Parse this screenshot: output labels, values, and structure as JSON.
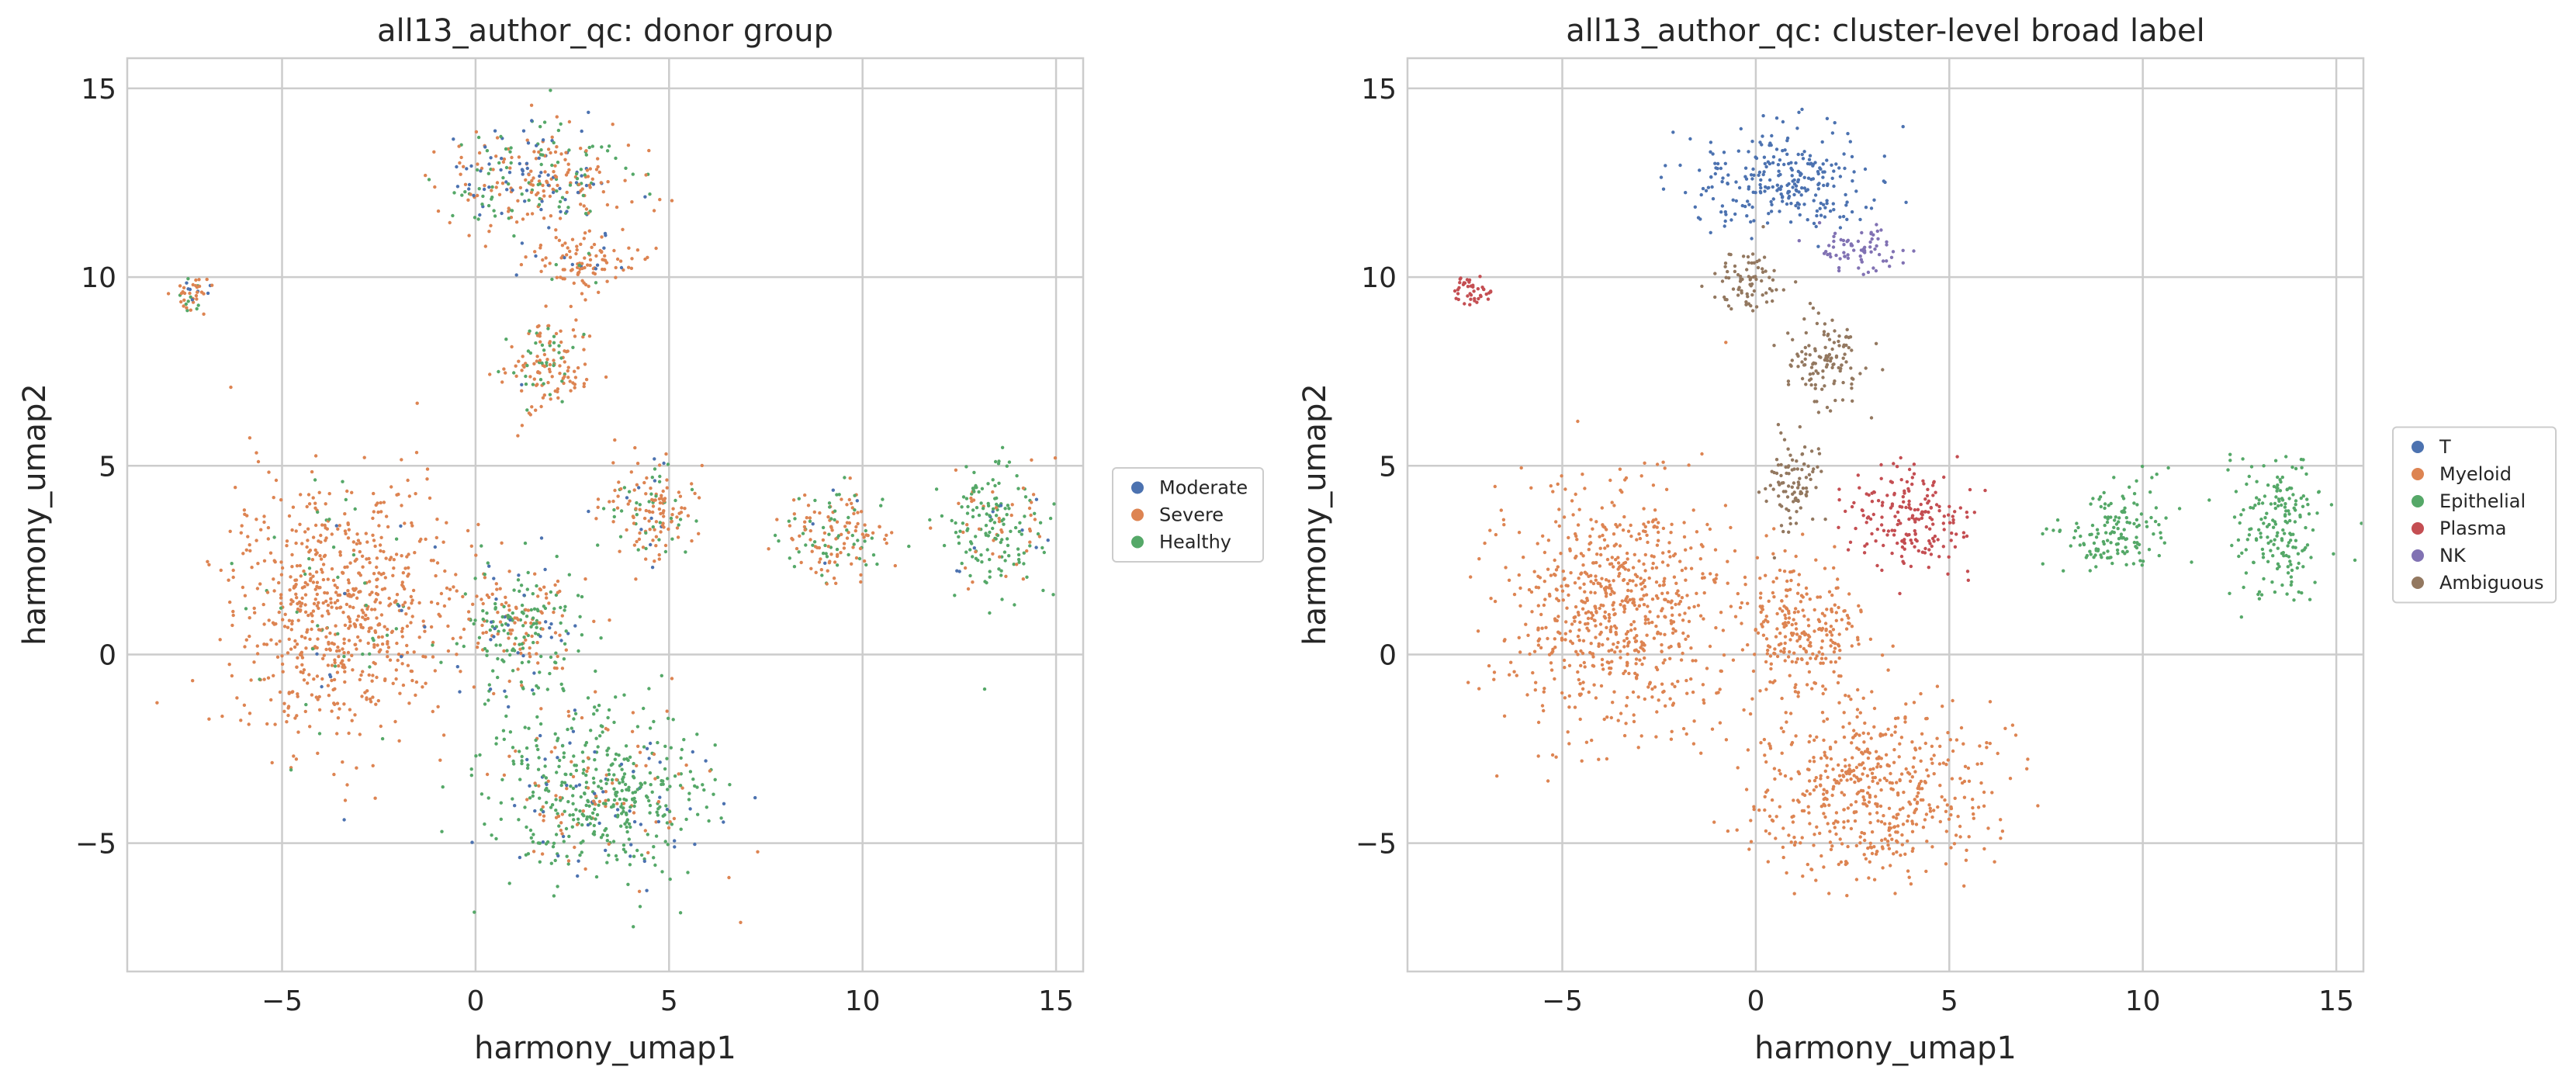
{
  "chart_data": [
    {
      "type": "scatter",
      "title": "all13_author_qc: donor group",
      "xlabel": "harmony_umap1",
      "ylabel": "harmony_umap2",
      "xlim": [
        -9,
        15.7
      ],
      "ylim": [
        -8.4,
        15.8
      ],
      "xticks": [
        -5,
        0,
        5,
        10,
        15
      ],
      "yticks": [
        -5,
        0,
        5,
        10,
        15
      ],
      "xtick_labels": [
        "−5",
        "0",
        "5",
        "10",
        "15"
      ],
      "ytick_labels": [
        "−5",
        "0",
        "5",
        "10",
        "15"
      ],
      "grid": true,
      "legend_position": "right-center, outside",
      "series": [
        {
          "name": "Moderate",
          "color": "#4c72b0"
        },
        {
          "name": "Severe",
          "color": "#dd8452"
        },
        {
          "name": "Healthy",
          "color": "#55a868"
        }
      ],
      "point_density": [
        {
          "region": "upper cluster",
          "cx": 1.5,
          "cy": 12.6,
          "sx": 1.6,
          "sy": 1.0,
          "counts": [
            0.22,
            0.45,
            0.33
          ]
        },
        {
          "region": "upper cluster tail",
          "cx": 2.7,
          "cy": 10.4,
          "sx": 0.9,
          "sy": 0.5,
          "counts": [
            0.05,
            0.9,
            0.05
          ]
        },
        {
          "region": "mid island",
          "cx": 1.8,
          "cy": 7.6,
          "sx": 0.8,
          "sy": 0.8,
          "counts": [
            0.05,
            0.75,
            0.2
          ]
        },
        {
          "region": "far-left streak",
          "cx": -7.3,
          "cy": 9.6,
          "sx": 0.35,
          "sy": 0.3,
          "counts": [
            0.1,
            0.6,
            0.3
          ]
        },
        {
          "region": "left myeloid mass",
          "cx": -3.5,
          "cy": 1.2,
          "sx": 1.9,
          "sy": 2.2,
          "counts": [
            0.02,
            0.93,
            0.05
          ]
        },
        {
          "region": "central lower mass",
          "cx": 3.2,
          "cy": -3.7,
          "sx": 1.9,
          "sy": 1.5,
          "counts": [
            0.1,
            0.15,
            0.75
          ]
        },
        {
          "region": "bridge",
          "cx": 1.2,
          "cy": 0.6,
          "sx": 1.1,
          "sy": 1.2,
          "counts": [
            0.08,
            0.35,
            0.57
          ]
        },
        {
          "region": "epithelial left",
          "cx": 9.3,
          "cy": 3.2,
          "sx": 0.9,
          "sy": 0.8,
          "counts": [
            0.05,
            0.55,
            0.4
          ]
        },
        {
          "region": "epithelial right",
          "cx": 13.5,
          "cy": 3.4,
          "sx": 0.8,
          "sy": 1.2,
          "counts": [
            0.05,
            0.2,
            0.75
          ]
        },
        {
          "region": "plasma arm",
          "cx": 4.5,
          "cy": 3.8,
          "sx": 0.9,
          "sy": 0.8,
          "counts": [
            0.05,
            0.7,
            0.25
          ]
        }
      ]
    },
    {
      "type": "scatter",
      "title": "all13_author_qc: cluster-level broad label",
      "xlabel": "harmony_umap1",
      "ylabel": "harmony_umap2",
      "xlim": [
        -9,
        15.7
      ],
      "ylim": [
        -8.4,
        15.8
      ],
      "xticks": [
        -5,
        0,
        5,
        10,
        15
      ],
      "yticks": [
        -5,
        0,
        5,
        10,
        15
      ],
      "xtick_labels": [
        "−5",
        "0",
        "5",
        "10",
        "15"
      ],
      "ytick_labels": [
        "−5",
        "0",
        "5",
        "10",
        "15"
      ],
      "grid": true,
      "legend_position": "right-center, outside",
      "series": [
        {
          "name": "T",
          "color": "#4c72b0"
        },
        {
          "name": "Myeloid",
          "color": "#dd8452"
        },
        {
          "name": "Epithelial",
          "color": "#55a868"
        },
        {
          "name": "Plasma",
          "color": "#c44e52"
        },
        {
          "name": "NK",
          "color": "#8172b3"
        },
        {
          "name": "Ambiguous",
          "color": "#937860"
        }
      ],
      "point_density": [
        {
          "region": "T cluster",
          "cx": 0.8,
          "cy": 12.6,
          "sx": 1.6,
          "sy": 0.9,
          "counts": [
            1,
            0,
            0,
            0,
            0,
            0
          ]
        },
        {
          "region": "NK cluster",
          "cx": 2.7,
          "cy": 10.7,
          "sx": 0.7,
          "sy": 0.4,
          "counts": [
            0,
            0,
            0,
            0,
            1,
            0
          ]
        },
        {
          "region": "Ambiguous upper",
          "cx": -0.2,
          "cy": 9.9,
          "sx": 0.6,
          "sy": 0.5,
          "counts": [
            0,
            0,
            0,
            0,
            0,
            1
          ]
        },
        {
          "region": "Ambiguous mid",
          "cx": 1.8,
          "cy": 7.8,
          "sx": 0.7,
          "sy": 0.8,
          "counts": [
            0,
            0,
            0,
            0,
            0,
            1
          ]
        },
        {
          "region": "Ambiguous lower",
          "cx": 0.9,
          "cy": 4.6,
          "sx": 0.5,
          "sy": 0.8,
          "counts": [
            0,
            0,
            0,
            0,
            0,
            1
          ]
        },
        {
          "region": "Plasma streak",
          "cx": -7.3,
          "cy": 9.6,
          "sx": 0.35,
          "sy": 0.3,
          "counts": [
            0,
            0,
            0,
            1,
            0,
            0
          ]
        },
        {
          "region": "Plasma arm",
          "cx": 4.0,
          "cy": 3.6,
          "sx": 1.1,
          "sy": 0.9,
          "counts": [
            0,
            0,
            0,
            1,
            0,
            0
          ]
        },
        {
          "region": "Myeloid left mass",
          "cx": -3.5,
          "cy": 1.2,
          "sx": 1.9,
          "sy": 2.2,
          "counts": [
            0,
            1,
            0,
            0,
            0,
            0
          ]
        },
        {
          "region": "Myeloid lower mass",
          "cx": 3.0,
          "cy": -3.7,
          "sx": 2.0,
          "sy": 1.5,
          "counts": [
            0,
            1,
            0,
            0,
            0,
            0
          ]
        },
        {
          "region": "Myeloid bridge",
          "cx": 1.2,
          "cy": 0.6,
          "sx": 1.1,
          "sy": 1.2,
          "counts": [
            0,
            1,
            0,
            0,
            0,
            0
          ]
        },
        {
          "region": "Epithelial left",
          "cx": 9.3,
          "cy": 3.2,
          "sx": 0.9,
          "sy": 0.8,
          "counts": [
            0,
            0,
            1,
            0,
            0,
            0
          ]
        },
        {
          "region": "Epithelial right",
          "cx": 13.5,
          "cy": 3.4,
          "sx": 0.8,
          "sy": 1.2,
          "counts": [
            0,
            0,
            1,
            0,
            0,
            0
          ]
        }
      ]
    }
  ]
}
